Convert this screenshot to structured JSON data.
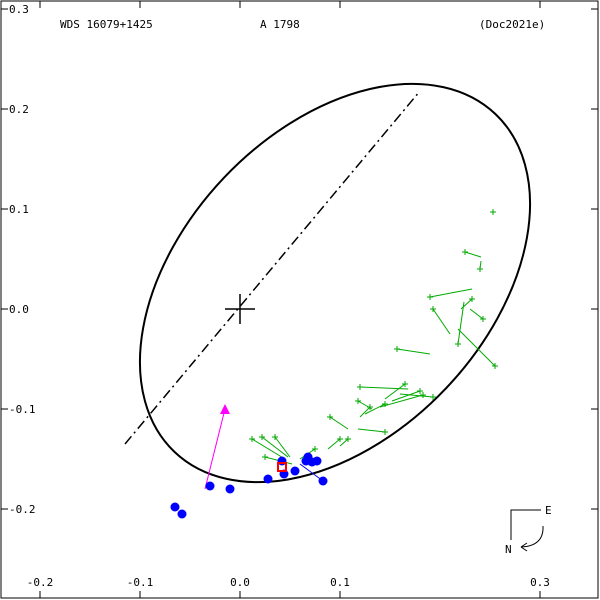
{
  "header": {
    "system": "WDS 16079+1425",
    "component": "A  1798",
    "reference": "(Doc2021e)"
  },
  "compass": {
    "east": "E",
    "north": "N"
  },
  "colors": {
    "orbit": "#000000",
    "measure_visual": "#00aa00",
    "measure_speckle": "#0000ff",
    "periastron_direction": "#ff00ff",
    "predicted": "#ff0000"
  },
  "chart_data": {
    "type": "scatter",
    "title": "",
    "xlabel": "",
    "ylabel": "",
    "xlim": [
      -0.24,
      0.36
    ],
    "ylim": [
      -0.28,
      0.3
    ],
    "grid": false,
    "x_ticks": [
      "-0.2",
      "-0.1",
      "0.0",
      "0.1",
      "0.3"
    ],
    "x_tick_values": [
      -0.2,
      -0.1,
      0.0,
      0.1,
      0.3
    ],
    "y_ticks": [
      "0.3",
      "0.2",
      "0.1",
      "0.0",
      "-0.1",
      "-0.2"
    ],
    "y_tick_values": [
      0.3,
      0.2,
      0.1,
      0.0,
      -0.1,
      -0.2
    ],
    "orbit_ellipse": {
      "center": [
        0.095,
        0.026
      ],
      "semi_major": 0.233,
      "semi_minor": 0.153,
      "angle_deg": 46.5
    },
    "line_of_nodes": {
      "from": [
        -0.115,
        -0.135
      ],
      "to": [
        0.18,
        0.218
      ]
    },
    "primary_star": [
      0.0,
      0.0
    ],
    "periastron_arrow": {
      "from": [
        -0.035,
        -0.18
      ],
      "to": [
        -0.015,
        -0.1
      ]
    },
    "predicted_position": [
      0.042,
      -0.158
    ],
    "series": [
      {
        "marker": "plus",
        "points": [
          {
            "obs": [
              0.253,
              0.097
            ],
            "fit": [
              0.252,
              0.097
            ]
          },
          {
            "obs": [
              0.225,
              0.057
            ],
            "fit": [
              0.241,
              0.052
            ]
          },
          {
            "obs": [
              0.24,
              0.04
            ],
            "fit": [
              0.241,
              0.048
            ]
          },
          {
            "obs": [
              0.19,
              0.012
            ],
            "fit": [
              0.232,
              0.02
            ]
          },
          {
            "obs": [
              0.232,
              0.01
            ],
            "fit": [
              0.221,
              0.0
            ]
          },
          {
            "obs": [
              0.243,
              -0.01
            ],
            "fit": [
              0.23,
              0.0
            ]
          },
          {
            "obs": [
              0.193,
              0.0
            ],
            "fit": [
              0.21,
              -0.025
            ]
          },
          {
            "obs": [
              0.218,
              -0.035
            ],
            "fit": [
              0.224,
              0.007
            ]
          },
          {
            "obs": [
              0.255,
              -0.057
            ],
            "fit": [
              0.218,
              -0.02
            ]
          },
          {
            "obs": [
              0.157,
              -0.04
            ],
            "fit": [
              0.19,
              -0.045
            ]
          },
          {
            "obs": [
              0.12,
              -0.078
            ],
            "fit": [
              0.168,
              -0.08
            ]
          },
          {
            "obs": [
              0.165,
              -0.075
            ],
            "fit": [
              0.145,
              -0.09
            ]
          },
          {
            "obs": [
              0.18,
              -0.082
            ],
            "fit": [
              0.152,
              -0.092
            ]
          },
          {
            "obs": [
              0.193,
              -0.088
            ],
            "fit": [
              0.16,
              -0.085
            ]
          },
          {
            "obs": [
              0.183,
              -0.086
            ],
            "fit": [
              0.14,
              -0.098
            ]
          },
          {
            "obs": [
              0.118,
              -0.092
            ],
            "fit": [
              0.132,
              -0.1
            ]
          },
          {
            "obs": [
              0.145,
              -0.095
            ],
            "fit": [
              0.125,
              -0.105
            ]
          },
          {
            "obs": [
              0.13,
              -0.098
            ],
            "fit": [
              0.12,
              -0.108
            ]
          },
          {
            "obs": [
              0.09,
              -0.108
            ],
            "fit": [
              0.108,
              -0.12
            ]
          },
          {
            "obs": [
              0.145,
              -0.123
            ],
            "fit": [
              0.118,
              -0.12
            ]
          },
          {
            "obs": [
              0.108,
              -0.13
            ],
            "fit": [
              0.1,
              -0.137
            ]
          },
          {
            "obs": [
              0.012,
              -0.13
            ],
            "fit": [
              0.045,
              -0.15
            ]
          },
          {
            "obs": [
              0.022,
              -0.128
            ],
            "fit": [
              0.048,
              -0.148
            ]
          },
          {
            "obs": [
              0.035,
              -0.128
            ],
            "fit": [
              0.05,
              -0.148
            ]
          },
          {
            "obs": [
              0.025,
              -0.148
            ],
            "fit": [
              0.052,
              -0.155
            ]
          },
          {
            "obs": [
              0.075,
              -0.14
            ],
            "fit": [
              0.06,
              -0.15
            ]
          },
          {
            "obs": [
              0.1,
              -0.13
            ],
            "fit": [
              0.088,
              -0.14
            ]
          }
        ]
      },
      {
        "marker": "circle",
        "points": [
          {
            "obs": [
              -0.065,
              -0.198
            ],
            "fit": [
              -0.065,
              -0.198
            ]
          },
          {
            "obs": [
              -0.058,
              -0.205
            ],
            "fit": [
              -0.058,
              -0.205
            ]
          },
          {
            "obs": [
              -0.03,
              -0.177
            ],
            "fit": [
              -0.03,
              -0.177
            ]
          },
          {
            "obs": [
              -0.01,
              -0.18
            ],
            "fit": [
              -0.01,
              -0.18
            ]
          },
          {
            "obs": [
              0.028,
              -0.17
            ],
            "fit": [
              0.028,
              -0.17
            ]
          },
          {
            "obs": [
              0.042,
              -0.152
            ],
            "fit": [
              0.042,
              -0.152
            ]
          },
          {
            "obs": [
              0.044,
              -0.165
            ],
            "fit": [
              0.044,
              -0.165
            ]
          },
          {
            "obs": [
              0.055,
              -0.162
            ],
            "fit": [
              0.055,
              -0.162
            ]
          },
          {
            "obs": [
              0.066,
              -0.152
            ],
            "fit": [
              0.066,
              -0.152
            ]
          },
          {
            "obs": [
              0.068,
              -0.148
            ],
            "fit": [
              0.068,
              -0.148
            ]
          },
          {
            "obs": [
              0.072,
              -0.153
            ],
            "fit": [
              0.072,
              -0.153
            ]
          },
          {
            "obs": [
              0.077,
              -0.152
            ],
            "fit": [
              0.077,
              -0.152
            ]
          },
          {
            "obs": [
              0.083,
              -0.172
            ],
            "fit": [
              0.06,
              -0.155
            ]
          }
        ]
      }
    ]
  }
}
